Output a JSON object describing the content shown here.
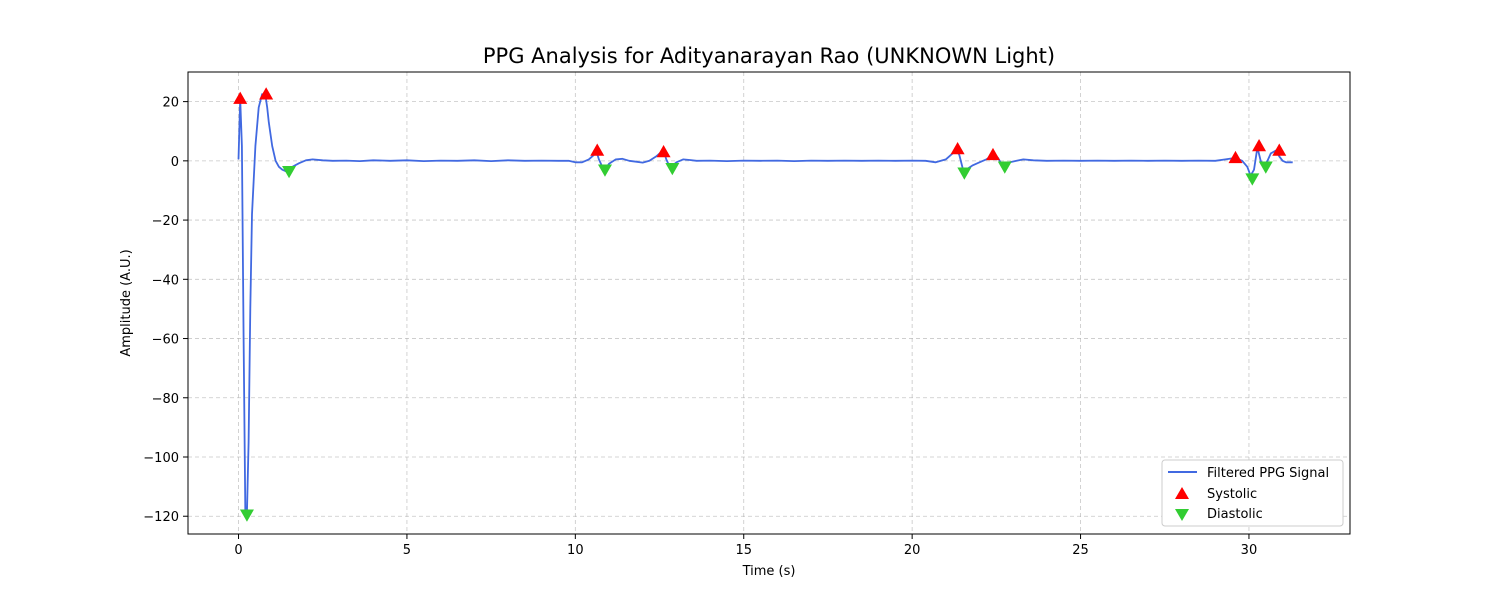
{
  "chart_data": {
    "type": "line",
    "title": "PPG Analysis for Adityanarayan Rao (UNKNOWN Light)",
    "xlabel": "Time (s)",
    "ylabel": "Amplitude (A.U.)",
    "xlim": [
      -1.5,
      33
    ],
    "ylim": [
      -126,
      30
    ],
    "xticks": [
      0,
      5,
      10,
      15,
      20,
      25,
      30
    ],
    "yticks": [
      20,
      0,
      -20,
      -40,
      -60,
      -80,
      -100,
      -120
    ],
    "grid": true,
    "legend_position": "lower-right",
    "colors": {
      "signal": "#4169e1",
      "systolic": "#ff0000",
      "diastolic": "#32cd32"
    },
    "series": [
      {
        "name": "Filtered PPG Signal",
        "kind": "line",
        "x": [
          0.0,
          0.05,
          0.1,
          0.15,
          0.2,
          0.25,
          0.3,
          0.35,
          0.4,
          0.5,
          0.6,
          0.7,
          0.8,
          0.85,
          0.9,
          1.0,
          1.1,
          1.2,
          1.3,
          1.4,
          1.5,
          1.6,
          1.8,
          2.0,
          2.2,
          2.5,
          2.8,
          3.2,
          3.6,
          4.0,
          4.5,
          5.0,
          5.5,
          6.0,
          6.5,
          7.0,
          7.5,
          8.0,
          8.5,
          9.0,
          9.5,
          9.8,
          10.0,
          10.2,
          10.4,
          10.55,
          10.62,
          10.7,
          10.8,
          10.9,
          11.0,
          11.2,
          11.4,
          11.6,
          11.8,
          12.0,
          12.2,
          12.4,
          12.55,
          12.62,
          12.7,
          12.78,
          12.85,
          13.0,
          13.2,
          13.4,
          13.6,
          14.0,
          14.5,
          15.0,
          15.5,
          16.0,
          16.5,
          17.0,
          17.5,
          18.0,
          18.5,
          19.0,
          19.5,
          20.0,
          20.4,
          20.7,
          21.0,
          21.2,
          21.3,
          21.4,
          21.5,
          21.6,
          21.8,
          22.0,
          22.2,
          22.35,
          22.45,
          22.55,
          22.65,
          22.75,
          22.9,
          23.1,
          23.3,
          23.6,
          24.0,
          24.5,
          25.0,
          25.5,
          26.0,
          26.5,
          27.0,
          27.5,
          28.0,
          28.5,
          29.0,
          29.3,
          29.6,
          29.8,
          29.95,
          30.05,
          30.15,
          30.25,
          30.35,
          30.45,
          30.55,
          30.65,
          30.8,
          30.9,
          31.0,
          31.1,
          31.3
        ],
        "y": [
          0.5,
          21.0,
          5.0,
          -60.0,
          -118.0,
          -119.5,
          -95.0,
          -50.0,
          -18.0,
          5.0,
          18.0,
          22.5,
          22.0,
          18.0,
          13.0,
          5.0,
          0.0,
          -2.0,
          -3.0,
          -3.5,
          -3.0,
          -2.0,
          -0.8,
          0.2,
          0.5,
          0.2,
          0.0,
          0.1,
          -0.1,
          0.2,
          0.0,
          0.2,
          -0.1,
          0.1,
          0.0,
          0.2,
          -0.1,
          0.2,
          0.0,
          0.1,
          0.0,
          0.0,
          -0.5,
          -0.5,
          0.5,
          2.0,
          3.5,
          0.5,
          -2.0,
          -2.5,
          -1.0,
          0.5,
          0.7,
          0.0,
          -0.3,
          -0.6,
          0.0,
          1.5,
          3.0,
          3.5,
          0.5,
          -1.5,
          -2.0,
          -0.5,
          0.5,
          0.3,
          0.0,
          0.1,
          -0.1,
          0.1,
          0.0,
          0.1,
          -0.1,
          0.1,
          0.0,
          0.1,
          0.0,
          0.1,
          0.0,
          0.1,
          0.0,
          -0.5,
          0.5,
          2.5,
          4.0,
          2.0,
          -2.5,
          -3.0,
          -1.5,
          -0.5,
          0.5,
          1.5,
          2.0,
          1.0,
          -1.0,
          -1.5,
          -0.5,
          0.0,
          0.5,
          0.2,
          0.0,
          0.1,
          0.0,
          0.1,
          0.0,
          0.1,
          0.0,
          0.1,
          0.0,
          0.1,
          0.0,
          0.5,
          1.0,
          0.0,
          -2.0,
          -5.0,
          -3.0,
          4.5,
          0.0,
          -1.5,
          0.0,
          2.5,
          3.5,
          1.5,
          0.0,
          -0.5,
          -0.5
        ]
      },
      {
        "name": "Systolic",
        "kind": "marker-up",
        "x": [
          0.05,
          0.82,
          10.65,
          12.62,
          21.35,
          22.4,
          29.6,
          30.3,
          30.9
        ],
        "y": [
          21.0,
          22.5,
          3.5,
          3.0,
          4.0,
          2.0,
          1.0,
          5.0,
          3.5
        ]
      },
      {
        "name": "Diastolic",
        "kind": "marker-down",
        "x": [
          0.25,
          1.5,
          10.88,
          12.88,
          21.55,
          22.75,
          30.1,
          30.5
        ],
        "y": [
          -119.5,
          -3.5,
          -3.0,
          -2.5,
          -4.0,
          -2.0,
          -6.0,
          -2.0
        ]
      }
    ]
  }
}
